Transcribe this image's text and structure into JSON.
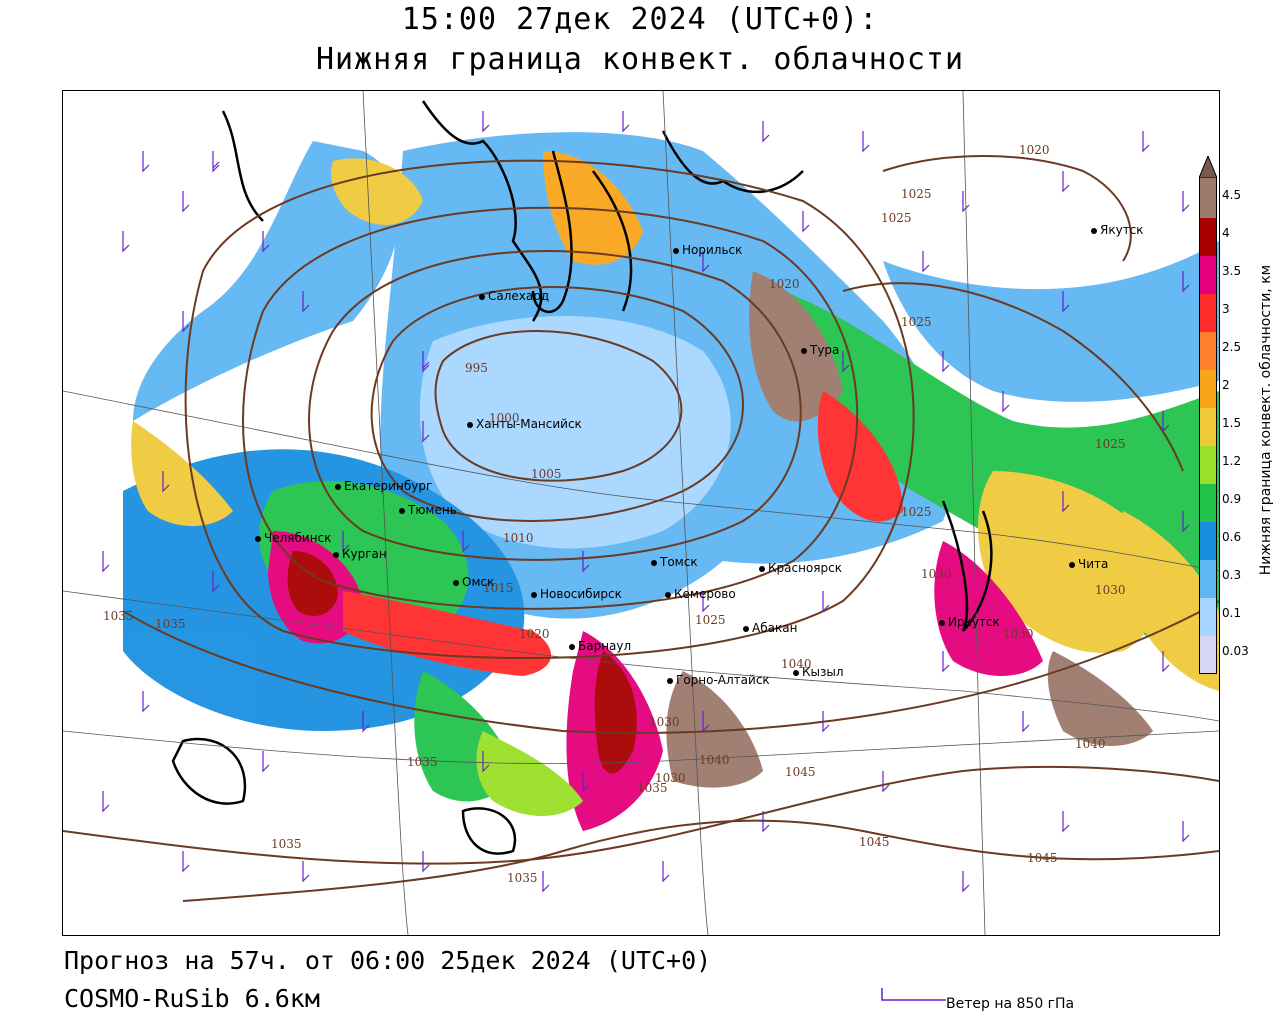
{
  "title": {
    "line1": "15:00 27дек 2024 (UTC+0):",
    "line2": "Нижняя граница конвект. облачности"
  },
  "footer": {
    "forecast": "Прогноз на 57ч. от 06:00 25дек 2024 (UTC+0)",
    "model": "COSMO-RuSib 6.6км",
    "wind_key": "Ветер на 850 гПа"
  },
  "legend": {
    "title": "Нижняя граница конвект. облачности, км",
    "ticks": [
      "4.5",
      "4",
      "3.5",
      "3",
      "2.5",
      "2",
      "1.5",
      "1.2",
      "0.9",
      "0.6",
      "0.3",
      "0.1",
      "0.03"
    ],
    "colors_top_to_bottom": [
      "#9c7a6c",
      "#a80000",
      "#e4007c",
      "#ff2a2a",
      "#ff7f2a",
      "#f9a51a",
      "#f0c93a",
      "#9ae028",
      "#22c24a",
      "#1a8fe0",
      "#5eb6f2",
      "#a6d6ff",
      "#d6d6f5"
    ]
  },
  "cities": [
    {
      "name": "Норильск"
    },
    {
      "name": "Салехард"
    },
    {
      "name": "Тура"
    },
    {
      "name": "Якутск"
    },
    {
      "name": "Ханты-Мансийск"
    },
    {
      "name": "Екатеринбург"
    },
    {
      "name": "Тюмень"
    },
    {
      "name": "Челябинск"
    },
    {
      "name": "Курган"
    },
    {
      "name": "Омск"
    },
    {
      "name": "Томск"
    },
    {
      "name": "Новосибирск"
    },
    {
      "name": "Кемерово"
    },
    {
      "name": "Красноярск"
    },
    {
      "name": "Барнаул"
    },
    {
      "name": "Абакан"
    },
    {
      "name": "Горно-Алтайск"
    },
    {
      "name": "Кызыл"
    },
    {
      "name": "Иркутск"
    },
    {
      "name": "Чита"
    }
  ],
  "isobars": [
    "1020",
    "1025",
    "1025",
    "1020",
    "1025",
    "995",
    "1000",
    "1005",
    "1010",
    "1015",
    "1020",
    "1025",
    "1025",
    "1030",
    "1035",
    "1035",
    "1035",
    "1030",
    "1035",
    "1040",
    "1045",
    "1040",
    "1045",
    "1045",
    "1035",
    "1040",
    "1030",
    "1030",
    "1025",
    "1035",
    "1030"
  ]
}
